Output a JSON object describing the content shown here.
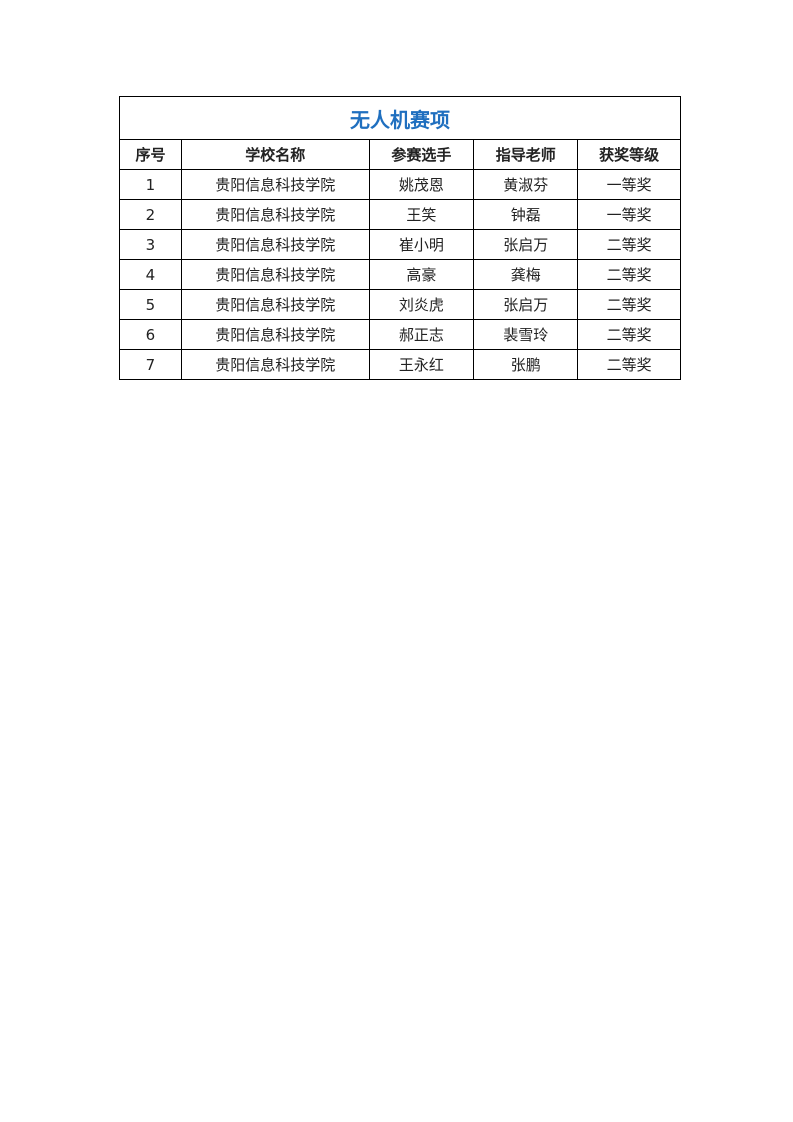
{
  "title": "无人机赛项",
  "title_color": "#1f6fbf",
  "headers": [
    "序号",
    "学校名称",
    "参赛选手",
    "指导老师",
    "获奖等级"
  ],
  "rows": [
    [
      "1",
      "贵阳信息科技学院",
      "姚茂恩",
      "黄淑芬",
      "一等奖"
    ],
    [
      "2",
      "贵阳信息科技学院",
      "王笑",
      "钟磊",
      "一等奖"
    ],
    [
      "3",
      "贵阳信息科技学院",
      "崔小明",
      "张启万",
      "二等奖"
    ],
    [
      "4",
      "贵阳信息科技学院",
      "高豪",
      "龚梅",
      "二等奖"
    ],
    [
      "5",
      "贵阳信息科技学院",
      "刘炎虎",
      "张启万",
      "二等奖"
    ],
    [
      "6",
      "贵阳信息科技学院",
      "郝正志",
      "裴雪玲",
      "二等奖"
    ],
    [
      "7",
      "贵阳信息科技学院",
      "王永红",
      "张鹏",
      "二等奖"
    ]
  ]
}
